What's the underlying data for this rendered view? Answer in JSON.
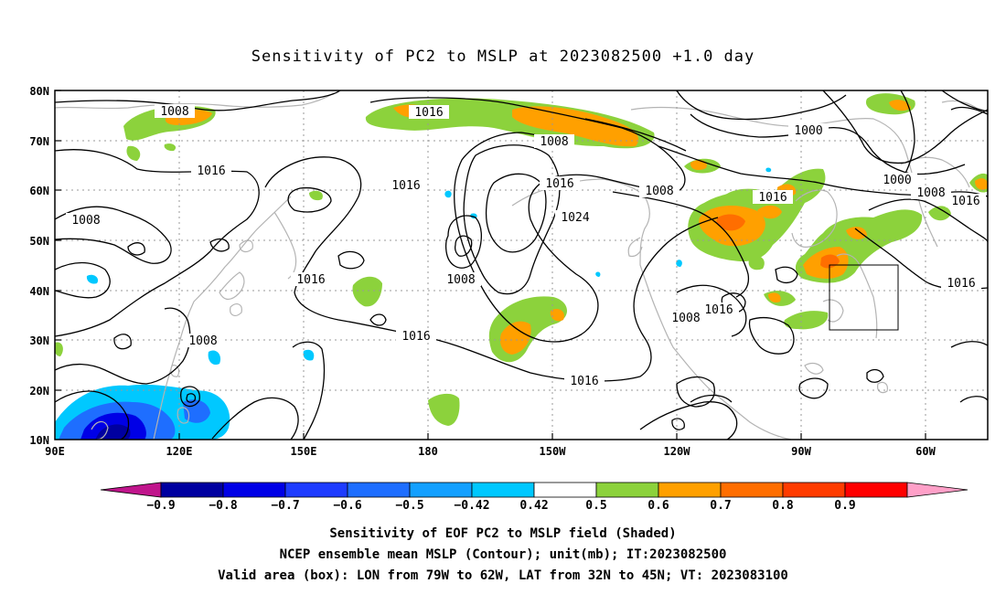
{
  "title": "Sensitivity of PC2 to MSLP at 2023082500 +1.0 day",
  "lat_labels": [
    "80N",
    "70N",
    "60N",
    "50N",
    "40N",
    "30N",
    "20N",
    "10N"
  ],
  "lon_labels": [
    "90E",
    "120E",
    "150E",
    "180",
    "150W",
    "120W",
    "90W",
    "60W"
  ],
  "contour_labels": [
    "1008",
    "1016",
    "1016",
    "1008",
    "1000",
    "1008",
    "1000",
    "1008",
    "1016",
    "1016",
    "1016",
    "1024",
    "1016",
    "1008",
    "1016",
    "1016",
    "1008",
    "1016",
    "1008",
    "1016",
    "1016"
  ],
  "colorbar": {
    "labels": [
      "−0.9",
      "−0.8",
      "−0.7",
      "−0.6",
      "−0.5",
      "−0.42",
      "0.42",
      "0.5",
      "0.6",
      "0.7",
      "0.8",
      "0.9"
    ],
    "colors": [
      "#c0158c",
      "#0000a0",
      "#0000e6",
      "#1e3cff",
      "#1e6eff",
      "#14a0ff",
      "#00c8ff",
      "#ffffff",
      "#8cd23c",
      "#ffa000",
      "#ff6e00",
      "#ff3c00",
      "#ff0000",
      "#ffa0c8"
    ]
  },
  "caption": [
    "Sensitivity of EOF PC2 to MSLP field (Shaded)",
    "NCEP ensemble mean MSLP (Contour); unit(mb); IT:2023082500",
    "Valid area (box): LON from 79W to 62W, LAT from 32N to 45N; VT: 2023083100"
  ],
  "valid_box": {
    "lon_min": -79,
    "lon_max": -62,
    "lat_min": 32,
    "lat_max": 45
  }
}
